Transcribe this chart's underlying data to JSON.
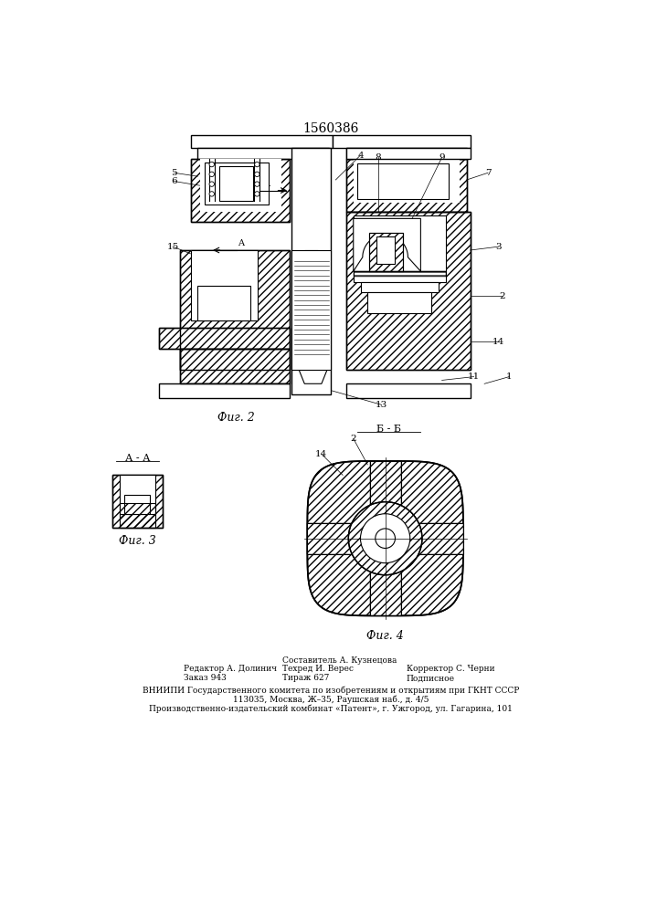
{
  "patent_number": "1560386",
  "fig2_label": "Фиг. 2",
  "fig3_label": "Фиг. 3",
  "fig4_label": "Фиг. 4",
  "section_bb": "Б - Б",
  "section_aa": "А - А",
  "footer_line1_left": "Редактор А. Долинич",
  "footer_line2_left": "Заказ 943",
  "footer_line1_mid": "Составитель А. Кузнецова",
  "footer_line2_mid": "Техред И. Верес",
  "footer_line3_mid": "Тираж 627",
  "footer_line1_right": "Корректор С. Черни",
  "footer_line2_right": "Подписное",
  "footer_vnipi": "ВНИИПИ Государственного комитета по изобретениям и открытиям при ГКНТ СССР",
  "footer_address": "113035, Москва, Ж–35, Раушская наб., д. 4/5",
  "footer_plant": "Производственно-издательский комбинат «Патент», г. Ужгород, ул. Гагарина, 101",
  "bg_color": "#ffffff",
  "line_color": "#000000"
}
